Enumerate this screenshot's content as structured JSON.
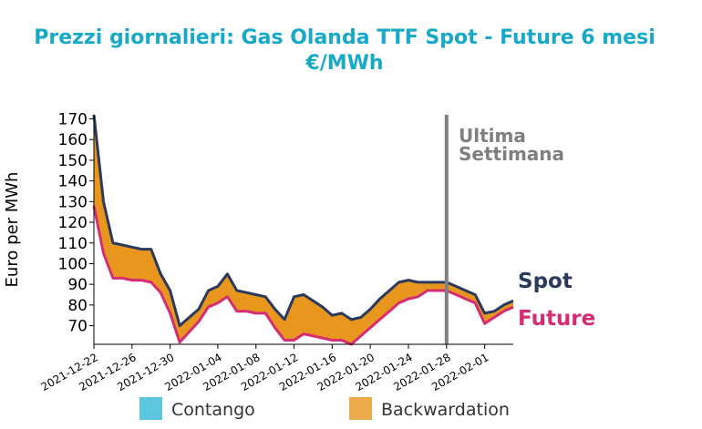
{
  "colors": {
    "title": "#17a9c8",
    "spot": "#2a3a5e",
    "future": "#d62c75",
    "backwardation": "#e8961e",
    "contango": "#5bc8e0",
    "marker": "#808080",
    "annotation": "#7f7f7f"
  },
  "chart_data": {
    "type": "area",
    "title": "Prezzi giornalieri: Gas Olanda TTF Spot - Future 6 mesi",
    "subtitle": "€/MWh",
    "ylabel": "Euro per MWh",
    "xlabel": "",
    "ylim": [
      61,
      172
    ],
    "xlim": [
      "2021-12-22",
      "2022-02-04"
    ],
    "yticks": [
      70,
      80,
      90,
      100,
      110,
      120,
      130,
      140,
      150,
      160,
      170
    ],
    "xticks": [
      "2021-12-22",
      "2021-12-26",
      "2021-12-30",
      "2022-01-04",
      "2022-01-08",
      "2022-01-12",
      "2022-01-16",
      "2022-01-20",
      "2022-01-24",
      "2022-01-28",
      "2022-02-01"
    ],
    "grid": false,
    "legend": {
      "placement": "bottom",
      "entries": [
        "Contango",
        "Backwardation"
      ]
    },
    "series": [
      {
        "name": "Spot",
        "x": [
          "2021-12-22",
          "2021-12-23",
          "2021-12-24",
          "2021-12-25",
          "2021-12-26",
          "2021-12-27",
          "2021-12-28",
          "2021-12-29",
          "2021-12-30",
          "2021-12-31",
          "2022-01-01",
          "2022-01-02",
          "2022-01-03",
          "2022-01-04",
          "2022-01-05",
          "2022-01-06",
          "2022-01-07",
          "2022-01-08",
          "2022-01-09",
          "2022-01-10",
          "2022-01-11",
          "2022-01-12",
          "2022-01-13",
          "2022-01-14",
          "2022-01-15",
          "2022-01-16",
          "2022-01-17",
          "2022-01-18",
          "2022-01-19",
          "2022-01-20",
          "2022-01-21",
          "2022-01-22",
          "2022-01-23",
          "2022-01-24",
          "2022-01-25",
          "2022-01-26",
          "2022-01-27",
          "2022-01-28",
          "2022-01-29",
          "2022-01-30",
          "2022-01-31",
          "2022-02-01",
          "2022-02-02",
          "2022-02-03",
          "2022-02-04"
        ],
        "y": [
          172,
          130,
          110,
          109,
          108,
          107,
          107,
          95,
          87,
          70,
          74,
          78,
          87,
          89,
          95,
          87,
          86,
          85,
          84,
          78,
          73,
          84,
          85,
          82,
          79,
          75,
          76,
          73,
          74,
          78,
          83,
          87,
          91,
          92,
          91,
          91,
          91,
          91,
          89,
          87,
          85,
          76,
          77,
          80,
          82
        ]
      },
      {
        "name": "Future",
        "x": [
          "2021-12-22",
          "2021-12-23",
          "2021-12-24",
          "2021-12-25",
          "2021-12-26",
          "2021-12-27",
          "2021-12-28",
          "2021-12-29",
          "2021-12-30",
          "2021-12-31",
          "2022-01-01",
          "2022-01-02",
          "2022-01-03",
          "2022-01-04",
          "2022-01-05",
          "2022-01-06",
          "2022-01-07",
          "2022-01-08",
          "2022-01-09",
          "2022-01-10",
          "2022-01-11",
          "2022-01-12",
          "2022-01-13",
          "2022-01-14",
          "2022-01-15",
          "2022-01-16",
          "2022-01-17",
          "2022-01-18",
          "2022-01-19",
          "2022-01-20",
          "2022-01-21",
          "2022-01-22",
          "2022-01-23",
          "2022-01-24",
          "2022-01-25",
          "2022-01-26",
          "2022-01-27",
          "2022-01-28",
          "2022-01-29",
          "2022-01-30",
          "2022-01-31",
          "2022-02-01",
          "2022-02-02",
          "2022-02-03",
          "2022-02-04"
        ],
        "y": [
          128,
          105,
          93,
          93,
          92,
          92,
          91,
          86,
          76,
          62,
          67,
          72,
          79,
          81,
          84,
          77,
          77,
          76,
          76,
          69,
          63,
          63,
          66,
          65,
          64,
          63,
          63,
          61,
          65,
          69,
          73,
          77,
          81,
          83,
          84,
          87,
          87,
          87,
          85,
          83,
          81,
          71,
          74,
          77,
          79
        ]
      }
    ],
    "vertical_marker": {
      "x": "2022-01-28",
      "label_line1": "Ultima",
      "label_line2": "Settimana"
    },
    "end_labels": {
      "spot": "Spot",
      "future": "Future"
    }
  }
}
